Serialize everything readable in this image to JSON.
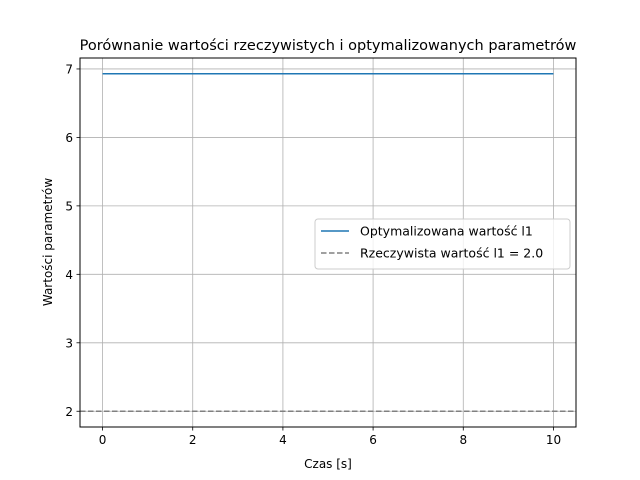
{
  "chart_data": {
    "type": "line",
    "title": "Porównanie wartości rzeczywistych i optymalizowanych parametrów",
    "xlabel": "Czas [s]",
    "ylabel": "Wartości parametrów",
    "xlim": [
      -0.5,
      10.5
    ],
    "ylim": [
      1.77,
      7.16
    ],
    "x_ticks": [
      0,
      2,
      4,
      6,
      8,
      10
    ],
    "y_ticks": [
      2,
      3,
      4,
      5,
      6,
      7
    ],
    "grid": true,
    "legend_position": "center-right",
    "series": [
      {
        "name": "Optymalizowana wartość l1",
        "style": "solid",
        "color": "#1f77b4",
        "x": [
          0,
          10
        ],
        "y": [
          6.93,
          6.93
        ]
      },
      {
        "name": "Rzeczywista wartość l1 = 2.0",
        "style": "dashed",
        "color": "#808080",
        "x": [
          -0.5,
          10.5
        ],
        "y": [
          2.0,
          2.0
        ]
      }
    ]
  }
}
